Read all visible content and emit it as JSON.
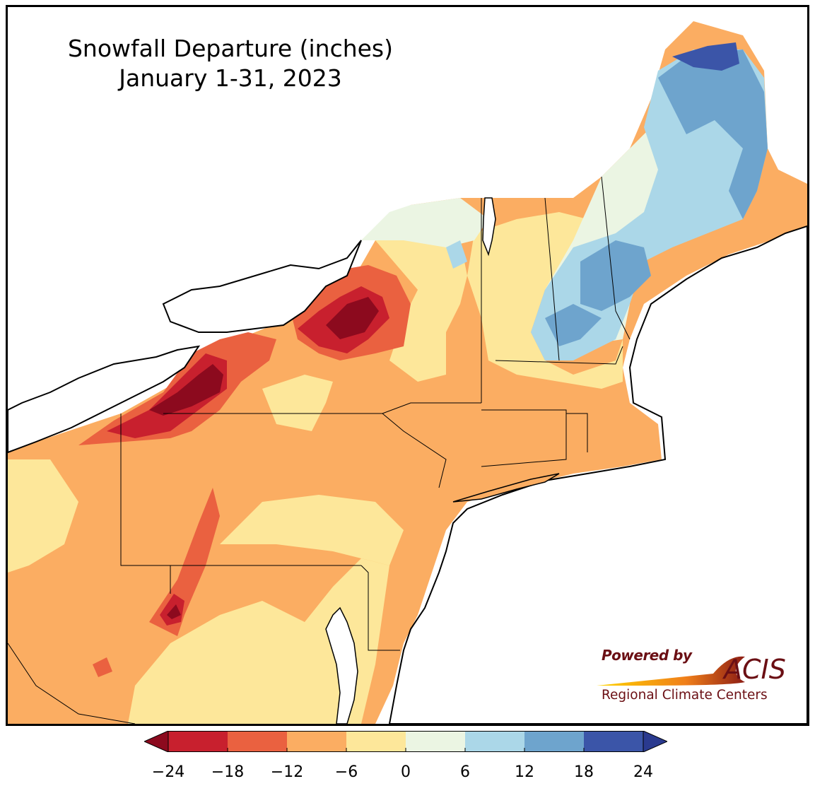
{
  "title": {
    "line1": "Snowfall Departure (inches)",
    "line2": "January 1-31, 2023"
  },
  "logo": {
    "powered_by": "Powered by",
    "acis": "ACIS",
    "regional": "Regional Climate Centers"
  },
  "legend": {
    "ticks": [
      "−24",
      "−18",
      "−12",
      "−6",
      "0",
      "6",
      "12",
      "18",
      "24"
    ],
    "bins": [
      {
        "range": "<-24",
        "color": "#8c0a1e"
      },
      {
        "range": "-24 to -18",
        "color": "#c8202e"
      },
      {
        "range": "-18 to -12",
        "color": "#ea6140"
      },
      {
        "range": "-12 to -6",
        "color": "#fbad62"
      },
      {
        "range": "-6 to 0",
        "color": "#fde79a"
      },
      {
        "range": "0 to 6",
        "color": "#ebf5e3"
      },
      {
        "range": "6 to 12",
        "color": "#abd7e8"
      },
      {
        "range": "12 to 18",
        "color": "#6ea4cd"
      },
      {
        "range": "18 to 24",
        "color": "#3b55a8"
      },
      {
        "range": ">24",
        "color": "#2a3a8f"
      }
    ]
  }
}
